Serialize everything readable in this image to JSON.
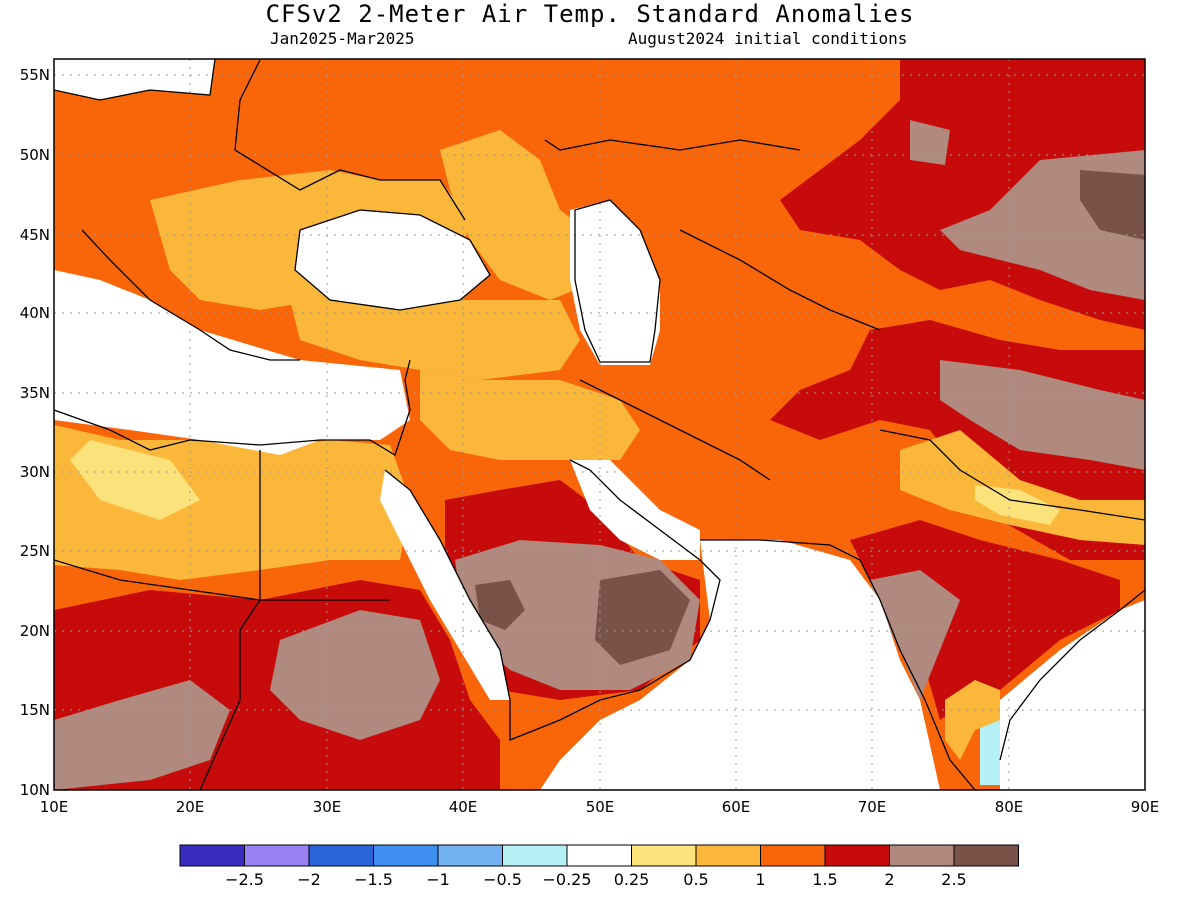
{
  "title": "CFSv2 2-Meter Air Temp. Standard Anomalies",
  "period": "Jan2025-Mar2025",
  "initial_conditions": "August2024 initial conditions",
  "map": {
    "lon_range": [
      10,
      90
    ],
    "lat_range": [
      10,
      56
    ],
    "lat_ticks": [
      "55N",
      "50N",
      "45N",
      "40N",
      "35N",
      "30N",
      "25N",
      "20N",
      "15N",
      "10N"
    ],
    "lon_ticks": [
      "10E",
      "20E",
      "30E",
      "40E",
      "50E",
      "60E",
      "70E",
      "80E",
      "90E"
    ],
    "gridlines": "dotted"
  },
  "colorbar": {
    "labels": [
      "−2.5",
      "−2",
      "−1.5",
      "−1",
      "−0.5",
      "−0.25",
      "0.25",
      "0.5",
      "1",
      "1.5",
      "2",
      "2.5"
    ],
    "colors": [
      "#3a2cc0",
      "#9b82f3",
      "#2a66d8",
      "#3f8ff0",
      "#72b2f3",
      "#b4f0f4",
      "#ffffff",
      "#fbe27a",
      "#fbb73a",
      "#f9660a",
      "#c70a0a",
      "#b0897f",
      "#795248"
    ]
  }
}
